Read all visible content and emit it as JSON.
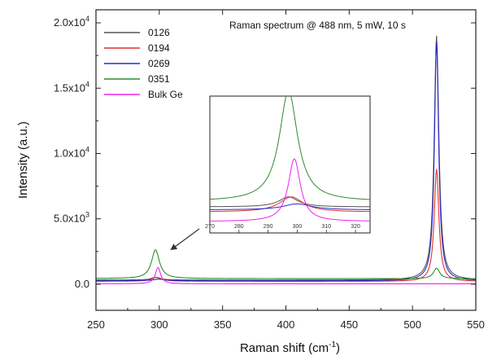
{
  "chart_data": {
    "type": "line",
    "annotation": "Raman spectrum @ 488 nm, 5 mW, 10 s",
    "xlabel": "Raman shift (cm",
    "xlabel_sup": "-1",
    "xlabel_end": ")",
    "ylabel": "Intensity (a.u.)",
    "xlim": [
      250,
      550
    ],
    "ylim": [
      -2000,
      21000
    ],
    "xticks": [
      250,
      300,
      350,
      400,
      450,
      500,
      550
    ],
    "yticks": [
      {
        "value": 0,
        "label": "0.0",
        "sup": ""
      },
      {
        "value": 5000,
        "label": "5.0x10",
        "sup": "3"
      },
      {
        "value": 10000,
        "label": "1.0x10",
        "sup": "4"
      },
      {
        "value": 15000,
        "label": "1.5x10",
        "sup": "4"
      },
      {
        "value": 20000,
        "label": "2.0x10",
        "sup": "4"
      }
    ],
    "legend_position": "top-left",
    "series": [
      {
        "name": "0126",
        "color": "#555555",
        "baseline": 320,
        "points": [
          [
            297,
            200,
            4
          ],
          [
            519,
            18700,
            2.2
          ]
        ]
      },
      {
        "name": "0194",
        "color": "#e03030",
        "baseline": 220,
        "points": [
          [
            298,
            300,
            5
          ],
          [
            519,
            8600,
            2.2
          ]
        ]
      },
      {
        "name": "0269",
        "color": "#2a2ac8",
        "baseline": 260,
        "points": [
          [
            300,
            120,
            6
          ],
          [
            519,
            18300,
            2.0
          ]
        ]
      },
      {
        "name": "0351",
        "color": "#2e8b2e",
        "baseline": 430,
        "points": [
          [
            297,
            2200,
            3.8
          ],
          [
            519,
            800,
            3
          ]
        ]
      },
      {
        "name": "Bulk Ge",
        "color": "#ee22ee",
        "baseline": 30,
        "points": [
          [
            299,
            1250,
            2.5
          ],
          [
            519,
            0,
            2
          ]
        ]
      }
    ],
    "inset": {
      "xlim": [
        270,
        325
      ],
      "xticks": [
        270,
        280,
        290,
        300,
        310,
        320
      ]
    }
  }
}
